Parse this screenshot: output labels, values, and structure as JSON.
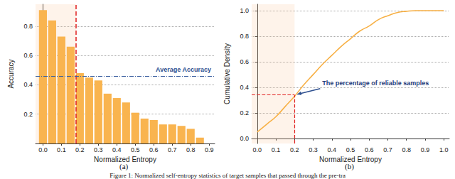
{
  "chart_data": [
    {
      "type": "bar",
      "panel": "(a)",
      "xlabel": "Normalized Entropy",
      "ylabel": "Accuracy",
      "x": [
        0.0,
        0.05,
        0.1,
        0.15,
        0.2,
        0.25,
        0.3,
        0.35,
        0.4,
        0.45,
        0.5,
        0.55,
        0.6,
        0.65,
        0.7,
        0.75,
        0.8,
        0.85
      ],
      "values": [
        0.91,
        0.84,
        0.73,
        0.66,
        0.48,
        0.45,
        0.43,
        0.34,
        0.31,
        0.28,
        0.21,
        0.17,
        0.16,
        0.13,
        0.13,
        0.12,
        0.1,
        0.04
      ],
      "color": "#f9b44f",
      "xlim": [
        -0.04,
        0.93
      ],
      "xticks": [
        {
          "value": 0,
          "label": "0.0"
        },
        0.1,
        0.2,
        0.3,
        0.4,
        0.5,
        0.6,
        0.7,
        0.8,
        0.9
      ],
      "ylim": [
        0,
        0.95
      ],
      "yticks": [
        0.2,
        0.4,
        0.6,
        0.8
      ],
      "grid": true,
      "annotations": [
        {
          "type": "vline",
          "x": 0.18
        },
        {
          "type": "hline",
          "y": 0.455,
          "text": "Average Accuracy"
        }
      ]
    },
    {
      "type": "line",
      "panel": "(b)",
      "xlabel": "Normalized Entropy",
      "ylabel": "Cumulative Density",
      "x": [
        0.0,
        0.05,
        0.1,
        0.15,
        0.2,
        0.25,
        0.3,
        0.35,
        0.4,
        0.45,
        0.5,
        0.55,
        0.6,
        0.65,
        0.7,
        0.75,
        0.8,
        0.85,
        0.9,
        0.95,
        1.0
      ],
      "values": [
        0.05,
        0.11,
        0.17,
        0.25,
        0.33,
        0.42,
        0.5,
        0.58,
        0.65,
        0.72,
        0.78,
        0.84,
        0.88,
        0.93,
        0.96,
        0.985,
        0.995,
        1.0,
        1.0,
        1.0,
        1.0
      ],
      "color": "#f7b045",
      "xlim": [
        -0.03,
        1.03
      ],
      "xticks": [
        {
          "value": 0,
          "label": "0.0"
        },
        0.1,
        0.2,
        0.3,
        0.4,
        0.5,
        0.6,
        0.7,
        0.8,
        0.9,
        {
          "value": 1,
          "label": "1.0"
        }
      ],
      "ylim": [
        -0.04,
        1.05
      ],
      "yticks": [
        {
          "value": 0,
          "label": "0.0"
        },
        0.2,
        0.4,
        0.6,
        0.8,
        {
          "value": 1,
          "label": "1.0"
        }
      ],
      "grid": true,
      "annotations": [
        {
          "type": "point",
          "x": 0.2,
          "y": 0.34,
          "text": "The percentage of reliable samples"
        }
      ]
    }
  ],
  "caption": "Figure 1: Normalized self-entropy statistics of target samples that passed through the pre-tra"
}
